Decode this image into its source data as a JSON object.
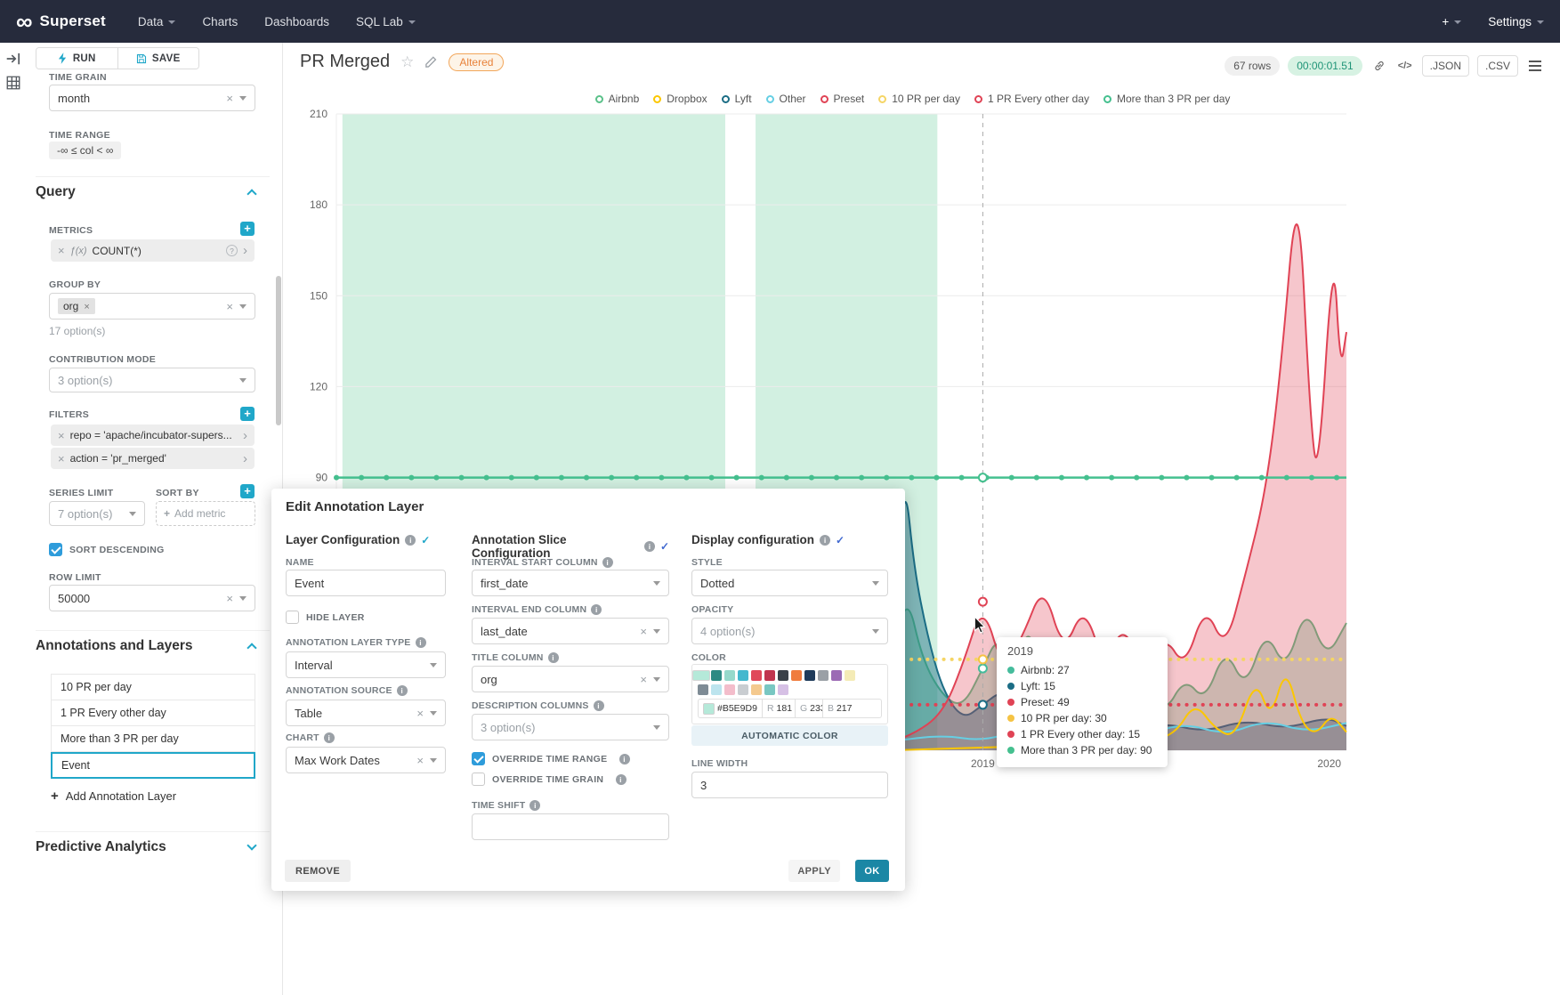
{
  "nav": {
    "logo": "∞",
    "brand": "Superset",
    "items": [
      "Data",
      "Charts",
      "Dashboards",
      "SQL Lab"
    ],
    "plus": "+",
    "settings": "Settings"
  },
  "panel": {
    "run": "RUN",
    "save": "SAVE",
    "time_grain_label": "TIME GRAIN",
    "time_grain_value": "month",
    "time_range_label": "TIME RANGE",
    "time_range_value": "-∞ ≤ col < ∞",
    "query_title": "Query",
    "metrics_label": "METRICS",
    "metric_fx": "ƒ(x)",
    "metric_name": "COUNT(*)",
    "group_by_label": "GROUP BY",
    "group_by_chip": "org",
    "group_by_hint": "17 option(s)",
    "contribution_label": "CONTRIBUTION MODE",
    "contribution_value": "3 option(s)",
    "filters_label": "FILTERS",
    "filters": [
      "repo = 'apache/incubator-supers...",
      "action = 'pr_merged'"
    ],
    "series_limit_label": "SERIES LIMIT",
    "series_limit_value": "7 option(s)",
    "sort_by_label": "SORT BY",
    "sort_by_placeholder": "Add metric",
    "sort_desc_label": "SORT DESCENDING",
    "row_limit_label": "ROW LIMIT",
    "row_limit_value": "50000",
    "annotations_title": "Annotations and Layers",
    "layers": [
      "10 PR per day",
      "1 PR Every other day",
      "More than 3 PR per day",
      "Event"
    ],
    "selected_layer": 3,
    "add_layer": "Add Annotation Layer",
    "predictive_title": "Predictive Analytics"
  },
  "header": {
    "title": "PR Merged",
    "badge": "Altered",
    "rows": "67 rows",
    "timer": "00:00:01.51",
    "code": "</>",
    "json": ".JSON",
    "csv": ".CSV"
  },
  "tooltip": {
    "title": "2019",
    "rows": [
      {
        "label": "Airbnb: 27",
        "color": "#45BC9C"
      },
      {
        "label": "Lyft: 15",
        "color": "#1B6D85"
      },
      {
        "label": "Preset: 49",
        "color": "#E04355"
      },
      {
        "label": "10 PR per day: 30",
        "color": "#F5C344"
      },
      {
        "label": "1 PR Every other day: 15",
        "color": "#E04355"
      },
      {
        "label": "More than 3 PR per day: 90",
        "color": "#45C08F"
      }
    ]
  },
  "modal": {
    "title": "Edit Annotation Layer",
    "col1_title": "Layer Configuration",
    "col1_check_color": "#20A7C9",
    "name_label": "NAME",
    "name_value": "Event",
    "hide_layer": "HIDE LAYER",
    "type_label": "ANNOTATION LAYER TYPE",
    "type_value": "Interval",
    "source_label": "ANNOTATION SOURCE",
    "source_value": "Table",
    "chart_label": "CHART",
    "chart_value": "Max Work Dates",
    "col2_title": "Annotation Slice Configuration",
    "col2_check_color": "#4169D0",
    "start_label": "INTERVAL START COLUMN",
    "start_value": "first_date",
    "end_label": "INTERVAL END COLUMN",
    "end_value": "last_date",
    "title_col_label": "TITLE COLUMN",
    "title_col_value": "org",
    "desc_label": "DESCRIPTION COLUMNS",
    "desc_value": "3 option(s)",
    "override_range": "OVERRIDE TIME RANGE",
    "override_grain": "OVERRIDE TIME GRAIN",
    "time_shift_label": "TIME SHIFT",
    "col3_title": "Display configuration",
    "col3_check_color": "#4169D0",
    "style_label": "STYLE",
    "style_value": "Dotted",
    "opacity_label": "OPACITY",
    "opacity_value": "4 option(s)",
    "color_label": "COLOR",
    "hex": "#B5E9D9",
    "r_label": "R",
    "r_value": "181",
    "g_label": "G",
    "g_value": "233",
    "b_label": "B",
    "b_value": "217",
    "swatches_row1": [
      "#4FBE9E",
      "#2D8A83",
      "#96D9CB",
      "#43B8CE",
      "#E0485A",
      "#C0344E",
      "#3A4149",
      "#F07C3E",
      "#1F3B5B",
      "#9AA0A6",
      "#9C6BB5",
      "#B5E9D9",
      "#F4EBB6"
    ],
    "swatches_row2": [
      "#7E8B95",
      "#BCE4EE",
      "#F3BDCB",
      "#C9CDD1",
      "#F4C98E",
      "#79C7C2",
      "#D6C0E5"
    ],
    "selected_swatch_row1": 11,
    "auto_color": "AUTOMATIC COLOR",
    "line_width_label": "LINE WIDTH",
    "line_width_value": "3",
    "remove": "REMOVE",
    "apply": "APPLY",
    "ok": "OK"
  },
  "colors": {
    "primary": "#20A7C9",
    "checkbox_blue": "#2E9CDB",
    "timer_bg": "#D7F2E3",
    "timer_text": "#1F9477",
    "altered_badge": "#E8823A",
    "selected_annotation_color": "#B5E9D9"
  },
  "chart_data": {
    "type": "area",
    "title": "PR Merged",
    "ylim": [
      0,
      210
    ],
    "y_ticks": [
      90,
      120,
      150,
      180,
      210
    ],
    "x_axis": [
      {
        "label": "2019",
        "pos": 64
      },
      {
        "label": "2020",
        "pos": 98.3
      }
    ],
    "band_color": "#D2F0E1",
    "annotation_bands": [
      [
        0.6,
        38.5
      ],
      [
        41.5,
        59.5
      ]
    ],
    "legend": [
      {
        "label": "Airbnb",
        "color": "#5AC189"
      },
      {
        "label": "Dropbox",
        "color": "#FCC700"
      },
      {
        "label": "Lyft",
        "color": "#1B6D85"
      },
      {
        "label": "Other",
        "color": "#66CFE4"
      },
      {
        "label": "Preset",
        "color": "#E04355"
      },
      {
        "label": "10 PR per day",
        "color": "#F5D565"
      },
      {
        "label": "1 PR Every other day",
        "color": "#E04355"
      },
      {
        "label": "More than 3 PR per day",
        "color": "#45C08F"
      }
    ],
    "hlines": [
      {
        "label": "More than 3 PR per day",
        "value": 90,
        "color": "#45C08F",
        "style": "solid"
      },
      {
        "label": "10 PR per day",
        "value": 30,
        "color": "#F5D565",
        "style": "dotted"
      },
      {
        "label": "1 PR Every other day",
        "value": 15,
        "color": "#E04355",
        "style": "dotted"
      }
    ],
    "vline": {
      "x": 64,
      "label": "2019",
      "markers": [
        {
          "value": 27,
          "color": "#45BC9C"
        },
        {
          "value": 15,
          "color": "#1B6D85"
        },
        {
          "value": 49,
          "color": "#E04355"
        },
        {
          "value": 30,
          "color": "#F5C344"
        },
        {
          "value": 90,
          "color": "#45C08F"
        }
      ]
    },
    "series": [
      {
        "name": "Airbnb",
        "color": "#5AC189",
        "fill": 0.35,
        "points": [
          [
            0,
            1
          ],
          [
            6,
            2
          ],
          [
            12,
            1
          ],
          [
            18,
            2
          ],
          [
            24,
            2
          ],
          [
            30,
            3
          ],
          [
            34,
            2
          ],
          [
            36.5,
            6
          ],
          [
            38.2,
            99
          ],
          [
            39.5,
            18
          ],
          [
            42,
            5
          ],
          [
            45,
            6
          ],
          [
            48,
            5
          ],
          [
            51,
            9
          ],
          [
            53,
            14
          ],
          [
            55,
            30
          ],
          [
            56.5,
            52
          ],
          [
            58,
            30
          ],
          [
            60,
            18
          ],
          [
            62,
            14
          ],
          [
            64,
            27
          ],
          [
            65.5,
            38
          ],
          [
            67,
            24
          ],
          [
            68.5,
            42
          ],
          [
            70,
            24
          ],
          [
            72,
            32
          ],
          [
            74,
            18
          ],
          [
            76,
            26
          ],
          [
            78,
            14
          ],
          [
            80,
            22
          ],
          [
            82,
            12
          ],
          [
            84,
            24
          ],
          [
            86,
            16
          ],
          [
            88,
            34
          ],
          [
            90,
            20
          ],
          [
            92,
            40
          ],
          [
            94,
            26
          ],
          [
            96,
            48
          ],
          [
            98,
            30
          ],
          [
            100,
            42
          ]
        ]
      },
      {
        "name": "Lyft",
        "color": "#1B6D85",
        "fill": 0.45,
        "points": [
          [
            0,
            0
          ],
          [
            20,
            1
          ],
          [
            40,
            2
          ],
          [
            48,
            3
          ],
          [
            52,
            6
          ],
          [
            54,
            18
          ],
          [
            55.5,
            55
          ],
          [
            56.3,
            90
          ],
          [
            57.2,
            60
          ],
          [
            58.5,
            38
          ],
          [
            60,
            20
          ],
          [
            62,
            10
          ],
          [
            64,
            15
          ],
          [
            66,
            20
          ],
          [
            68,
            11
          ],
          [
            70,
            16
          ],
          [
            72,
            8
          ],
          [
            75,
            11
          ],
          [
            78,
            6
          ],
          [
            82,
            9
          ],
          [
            86,
            6
          ],
          [
            90,
            10
          ],
          [
            94,
            7
          ],
          [
            98,
            11
          ],
          [
            100,
            8
          ]
        ]
      },
      {
        "name": "Preset",
        "color": "#E04355",
        "fill": 0.3,
        "points": [
          [
            0,
            0
          ],
          [
            40,
            0
          ],
          [
            50,
            1
          ],
          [
            54,
            2
          ],
          [
            57,
            5
          ],
          [
            60,
            12
          ],
          [
            62,
            28
          ],
          [
            64,
            49
          ],
          [
            66,
            26
          ],
          [
            68,
            38
          ],
          [
            70,
            55
          ],
          [
            72,
            32
          ],
          [
            74,
            48
          ],
          [
            76,
            28
          ],
          [
            78,
            42
          ],
          [
            80,
            24
          ],
          [
            82,
            38
          ],
          [
            84,
            27
          ],
          [
            86,
            48
          ],
          [
            88,
            33
          ],
          [
            90,
            58
          ],
          [
            92,
            85
          ],
          [
            93.5,
            125
          ],
          [
            95.2,
            192
          ],
          [
            96.4,
            110
          ],
          [
            97.2,
            88
          ],
          [
            98.7,
            168
          ],
          [
            99.4,
            125
          ],
          [
            100,
            138
          ]
        ]
      },
      {
        "name": "Other",
        "color": "#66CFE4",
        "fill": 0,
        "points": [
          [
            50,
            1
          ],
          [
            55,
            3
          ],
          [
            60,
            5
          ],
          [
            64,
            3
          ],
          [
            68,
            7
          ],
          [
            72,
            4
          ],
          [
            76,
            8
          ],
          [
            80,
            5
          ],
          [
            84,
            9
          ],
          [
            88,
            5
          ],
          [
            92,
            10
          ],
          [
            96,
            6
          ],
          [
            100,
            9
          ]
        ]
      },
      {
        "name": "Dropbox",
        "color": "#FCC700",
        "fill": 0,
        "points": [
          [
            55,
            0
          ],
          [
            65,
            1
          ],
          [
            75,
            2
          ],
          [
            80,
            3
          ],
          [
            83,
            5
          ],
          [
            85,
            16
          ],
          [
            87,
            7
          ],
          [
            89,
            4
          ],
          [
            91,
            24
          ],
          [
            92.5,
            10
          ],
          [
            94,
            28
          ],
          [
            95.5,
            9
          ],
          [
            97,
            5
          ],
          [
            98.5,
            12
          ],
          [
            100,
            6
          ]
        ]
      }
    ]
  }
}
